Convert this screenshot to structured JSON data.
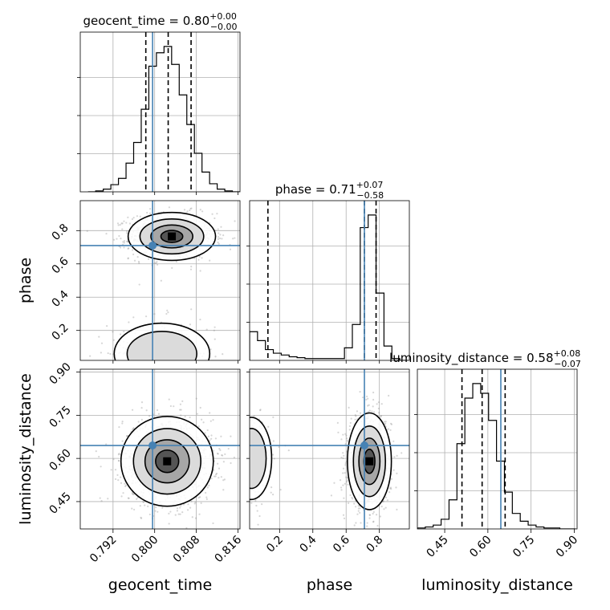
{
  "chart_data": {
    "type": "corner",
    "parameters": [
      "geocent_time",
      "phase",
      "luminosity_distance"
    ],
    "axis_labels": {
      "geocent_time": "geocent_time",
      "phase": "phase",
      "luminosity_distance": "luminosity_distance"
    },
    "panel_titles": [
      {
        "param": "geocent_time",
        "name": "geocent_time",
        "median": "0.80",
        "plus": "+0.00",
        "minus": "−0.00"
      },
      {
        "param": "phase",
        "name": "phase",
        "median": "0.71",
        "plus": "+0.07",
        "minus": "−0.58"
      },
      {
        "param": "luminosity_distance",
        "name": "luminosity_distance",
        "median": "0.58",
        "plus": "+0.08",
        "minus": "−0.07"
      }
    ],
    "ranges": {
      "geocent_time": [
        0.7857,
        0.8164
      ],
      "phase": [
        0.02,
        0.98
      ],
      "luminosity_distance": [
        0.355,
        0.91
      ]
    },
    "ticks": {
      "geocent_time": [
        0.792,
        0.8,
        0.808,
        0.816
      ],
      "phase": [
        0.2,
        0.4,
        0.6,
        0.8
      ],
      "luminosity_distance": [
        0.45,
        0.6,
        0.75,
        0.9
      ]
    },
    "tick_labels": {
      "geocent_time": [
        "0.792",
        "0.800",
        "0.808",
        "0.816"
      ],
      "phase": [
        "0.2",
        "0.4",
        "0.6",
        "0.8"
      ],
      "luminosity_distance": [
        "0.45",
        "0.60",
        "0.75",
        "0.90"
      ]
    },
    "truths": {
      "geocent_time": 0.7996,
      "phase": 0.71,
      "luminosity_distance": 0.645
    },
    "quantiles": {
      "geocent_time": [
        0.7983,
        0.8026,
        0.807
      ],
      "phase": [
        0.13,
        0.71,
        0.78
      ],
      "luminosity_distance": [
        0.51,
        0.58,
        0.66
      ]
    },
    "histograms": {
      "geocent_time": {
        "edges_start": 0.7872,
        "bin_width": 0.00146,
        "counts": [
          0,
          1,
          3,
          8,
          15,
          32,
          55,
          92,
          140,
          155,
          162,
          142,
          108,
          75,
          43,
          22,
          9,
          3,
          1,
          0
        ]
      },
      "phase": {
        "edges_start": 0.02,
        "bin_width": 0.0475,
        "counts": [
          32,
          22,
          12,
          8,
          6,
          4,
          3,
          2,
          2,
          2,
          2,
          2,
          14,
          40,
          148,
          162,
          75,
          16,
          2,
          0
        ]
      },
      "luminosity_distance": {
        "edges_start": 0.355,
        "bin_width": 0.0275,
        "counts": [
          1,
          2,
          4,
          10,
          30,
          88,
          135,
          150,
          140,
          112,
          70,
          38,
          16,
          8,
          4,
          2,
          1,
          1,
          0,
          0
        ]
      }
    },
    "modes_2d": [
      {
        "x": "geocent_time",
        "y": "phase",
        "clusters": [
          {
            "cx": 0.8033,
            "cy": 0.765,
            "sx": 0.0035,
            "sy": 0.06,
            "w": 0.78
          },
          {
            "cx": 0.8014,
            "cy": 0.06,
            "sx": 0.0045,
            "sy": 0.09,
            "w": 0.22
          }
        ]
      },
      {
        "x": "geocent_time",
        "y": "luminosity_distance",
        "clusters": [
          {
            "cx": 0.8024,
            "cy": 0.59,
            "sx": 0.0037,
            "sy": 0.065,
            "w": 1.0
          }
        ]
      },
      {
        "x": "phase",
        "y": "luminosity_distance",
        "clusters": [
          {
            "cx": 0.74,
            "cy": 0.59,
            "sx": 0.055,
            "sy": 0.07,
            "w": 0.78
          },
          {
            "cx": 0.03,
            "cy": 0.6,
            "sx": 0.06,
            "sy": 0.07,
            "w": 0.22
          }
        ]
      }
    ],
    "colors": {
      "truth": "#4682b4",
      "hist": "#000000",
      "grid": "#b0b0b0",
      "points": "#8a8a8a"
    },
    "grid": true
  }
}
